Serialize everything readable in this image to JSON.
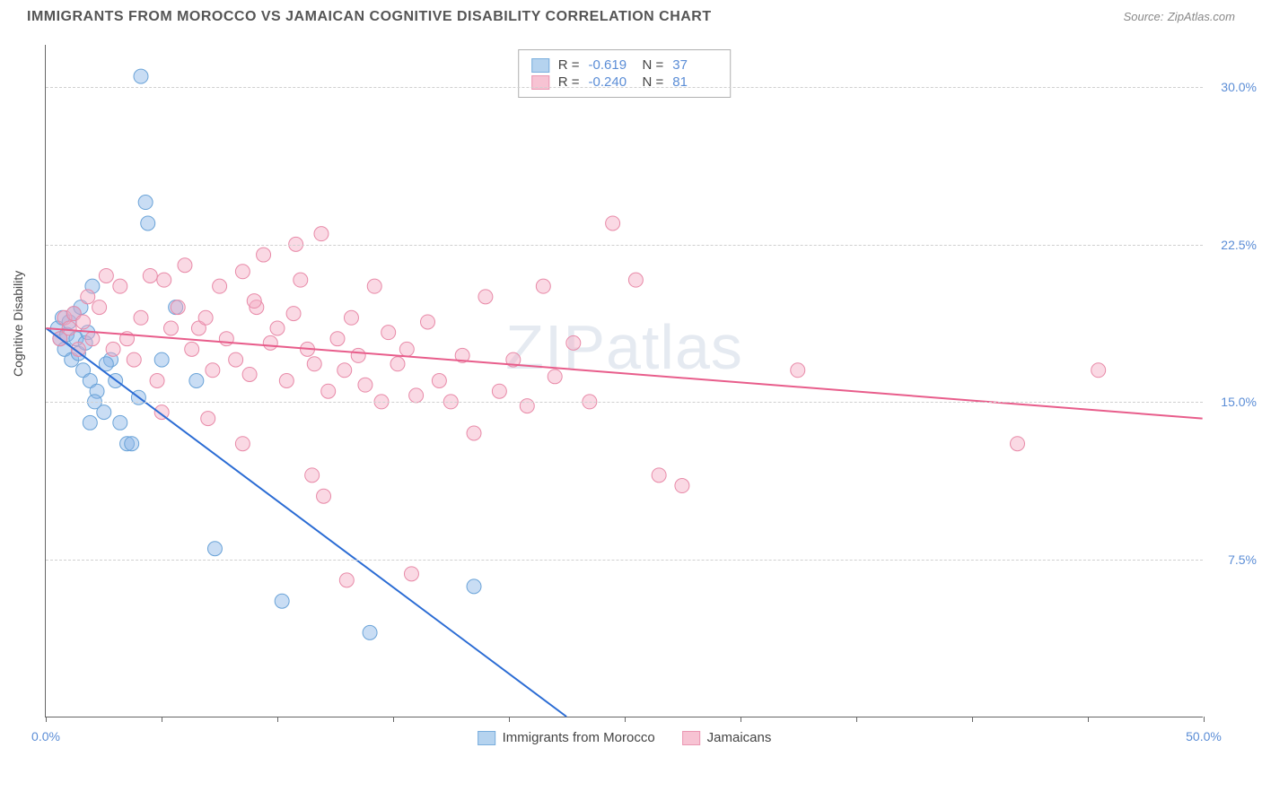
{
  "title": "IMMIGRANTS FROM MOROCCO VS JAMAICAN COGNITIVE DISABILITY CORRELATION CHART",
  "source_label": "Source:",
  "source_value": "ZipAtlas.com",
  "ylabel": "Cognitive Disability",
  "watermark": "ZIPatlas",
  "chart": {
    "type": "scatter",
    "xlim": [
      0,
      50
    ],
    "ylim": [
      0,
      32
    ],
    "yticks": [
      7.5,
      15.0,
      22.5,
      30.0
    ],
    "ytick_labels": [
      "7.5%",
      "15.0%",
      "22.5%",
      "30.0%"
    ],
    "xtick_positions": [
      0,
      5,
      10,
      15,
      20,
      25,
      30,
      35,
      40,
      45,
      50
    ],
    "xtick_labels": {
      "0": "0.0%",
      "50": "50.0%"
    },
    "grid_color": "#d0d0d0",
    "background_color": "#ffffff",
    "series": [
      {
        "name": "Immigrants from Morocco",
        "color_fill": "rgba(135, 180, 230, 0.45)",
        "color_stroke": "#6aa3d8",
        "swatch_fill": "#b5d3ef",
        "swatch_stroke": "#7aaedd",
        "trend_color": "#2b6cd4",
        "trend": {
          "x1": 0,
          "y1": 18.5,
          "x2": 22.5,
          "y2": 0
        },
        "R": "-0.619",
        "N": "37",
        "marker_radius": 8,
        "points": [
          [
            0.5,
            18.5
          ],
          [
            0.6,
            18.0
          ],
          [
            0.7,
            19.0
          ],
          [
            0.8,
            17.5
          ],
          [
            0.9,
            18.2
          ],
          [
            1.0,
            18.8
          ],
          [
            1.1,
            17.0
          ],
          [
            1.2,
            19.2
          ],
          [
            1.3,
            18.0
          ],
          [
            1.4,
            17.3
          ],
          [
            1.5,
            19.5
          ],
          [
            1.6,
            16.5
          ],
          [
            1.7,
            17.8
          ],
          [
            1.8,
            18.3
          ],
          [
            1.9,
            16.0
          ],
          [
            2.2,
            15.5
          ],
          [
            2.5,
            14.5
          ],
          [
            2.8,
            17.0
          ],
          [
            3.0,
            16.0
          ],
          [
            3.2,
            14.0
          ],
          [
            3.5,
            13.0
          ],
          [
            3.7,
            13.0
          ],
          [
            4.0,
            15.2
          ],
          [
            4.1,
            30.5
          ],
          [
            4.3,
            24.5
          ],
          [
            4.4,
            23.5
          ],
          [
            5.0,
            17.0
          ],
          [
            5.6,
            19.5
          ],
          [
            6.5,
            16.0
          ],
          [
            7.3,
            8.0
          ],
          [
            10.2,
            5.5
          ],
          [
            14.0,
            4.0
          ],
          [
            18.5,
            6.2
          ],
          [
            2.0,
            20.5
          ],
          [
            2.6,
            16.8
          ],
          [
            1.9,
            14.0
          ],
          [
            2.1,
            15.0
          ]
        ]
      },
      {
        "name": "Jamaicans",
        "color_fill": "rgba(245, 170, 195, 0.45)",
        "color_stroke": "#e88aa8",
        "swatch_fill": "#f7c3d3",
        "swatch_stroke": "#ea97b2",
        "trend_color": "#e85d8b",
        "trend": {
          "x1": 0,
          "y1": 18.5,
          "x2": 50,
          "y2": 14.2
        },
        "R": "-0.240",
        "N": "81",
        "marker_radius": 8,
        "points": [
          [
            0.6,
            18.0
          ],
          [
            0.8,
            19.0
          ],
          [
            1.0,
            18.5
          ],
          [
            1.2,
            19.2
          ],
          [
            1.4,
            17.5
          ],
          [
            1.6,
            18.8
          ],
          [
            1.8,
            20.0
          ],
          [
            2.0,
            18.0
          ],
          [
            2.3,
            19.5
          ],
          [
            2.6,
            21.0
          ],
          [
            2.9,
            17.5
          ],
          [
            3.2,
            20.5
          ],
          [
            3.5,
            18.0
          ],
          [
            3.8,
            17.0
          ],
          [
            4.1,
            19.0
          ],
          [
            4.5,
            21.0
          ],
          [
            4.8,
            16.0
          ],
          [
            5.1,
            20.8
          ],
          [
            5.4,
            18.5
          ],
          [
            5.7,
            19.5
          ],
          [
            6.0,
            21.5
          ],
          [
            6.3,
            17.5
          ],
          [
            6.6,
            18.5
          ],
          [
            6.9,
            19.0
          ],
          [
            7.2,
            16.5
          ],
          [
            7.5,
            20.5
          ],
          [
            7.8,
            18.0
          ],
          [
            8.2,
            17.0
          ],
          [
            8.5,
            21.2
          ],
          [
            8.8,
            16.3
          ],
          [
            9.1,
            19.5
          ],
          [
            9.4,
            22.0
          ],
          [
            9.7,
            17.8
          ],
          [
            10.0,
            18.5
          ],
          [
            10.4,
            16.0
          ],
          [
            10.7,
            19.2
          ],
          [
            11.0,
            20.8
          ],
          [
            11.3,
            17.5
          ],
          [
            11.6,
            16.8
          ],
          [
            11.9,
            23.0
          ],
          [
            12.2,
            15.5
          ],
          [
            12.6,
            18.0
          ],
          [
            12.9,
            16.5
          ],
          [
            13.2,
            19.0
          ],
          [
            13.5,
            17.2
          ],
          [
            13.8,
            15.8
          ],
          [
            14.2,
            20.5
          ],
          [
            14.5,
            15.0
          ],
          [
            14.8,
            18.3
          ],
          [
            15.2,
            16.8
          ],
          [
            15.6,
            17.5
          ],
          [
            16.0,
            15.3
          ],
          [
            16.5,
            18.8
          ],
          [
            17.0,
            16.0
          ],
          [
            17.5,
            15.0
          ],
          [
            18.0,
            17.2
          ],
          [
            18.5,
            13.5
          ],
          [
            19.0,
            20.0
          ],
          [
            19.6,
            15.5
          ],
          [
            20.2,
            17.0
          ],
          [
            20.8,
            14.8
          ],
          [
            21.5,
            20.5
          ],
          [
            22.0,
            16.2
          ],
          [
            22.8,
            17.8
          ],
          [
            23.5,
            15.0
          ],
          [
            24.5,
            23.5
          ],
          [
            25.5,
            20.8
          ],
          [
            26.5,
            11.5
          ],
          [
            27.5,
            11.0
          ],
          [
            32.5,
            16.5
          ],
          [
            9.0,
            19.8
          ],
          [
            10.8,
            22.5
          ],
          [
            11.5,
            11.5
          ],
          [
            13.0,
            6.5
          ],
          [
            15.8,
            6.8
          ],
          [
            12.0,
            10.5
          ],
          [
            5.0,
            14.5
          ],
          [
            7.0,
            14.2
          ],
          [
            8.5,
            13.0
          ],
          [
            42.0,
            13.0
          ],
          [
            45.5,
            16.5
          ]
        ]
      }
    ]
  },
  "stats_labels": {
    "R": "R =",
    "N": "N ="
  }
}
